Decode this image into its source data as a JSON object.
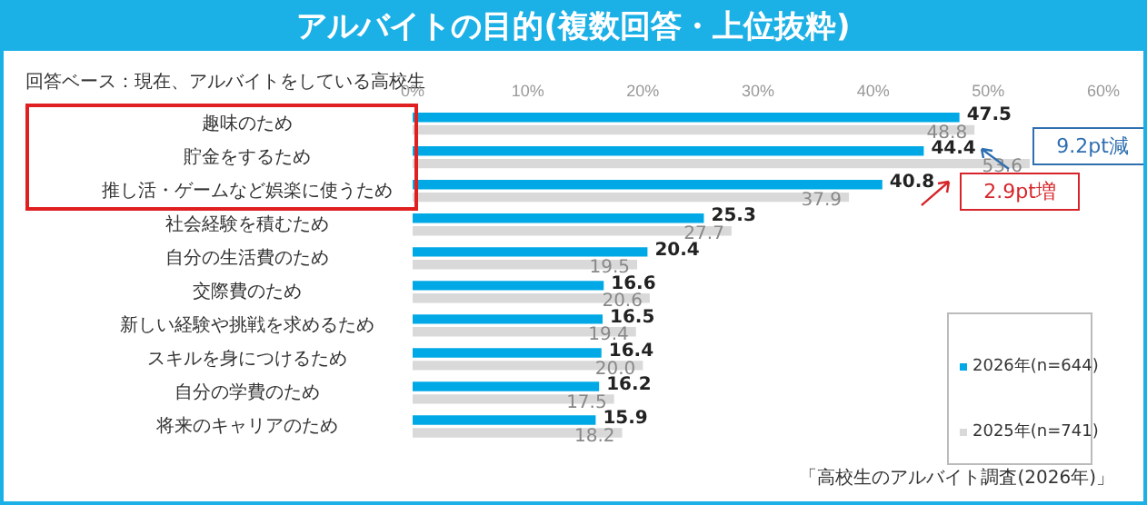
{
  "chart_data": {
    "type": "bar",
    "orientation": "horizontal",
    "title": "アルバイトの目的(複数回答・上位抜粋)",
    "subtitle": "回答ベース：現在、アルバイトをしている高校生",
    "categories": [
      "趣味のため",
      "貯金をするため",
      "推し活・ゲームなど娯楽に使うため",
      "社会経験を積むため",
      "自分の生活費のため",
      "交際費のため",
      "新しい経験や挑戦を求めるため",
      "スキルを身につけるため",
      "自分の学費のため",
      "将来のキャリアのため"
    ],
    "series": [
      {
        "name": "2026年(n=644)",
        "color": "#00a9e6",
        "values": [
          47.5,
          44.4,
          40.8,
          25.3,
          20.4,
          16.6,
          16.5,
          16.4,
          16.2,
          15.9
        ],
        "value_labels": [
          "47.5",
          "44.4",
          "40.8",
          "25.3",
          "20.4",
          "16.6",
          "16.5",
          "16.4",
          "16.2",
          "15.9"
        ]
      },
      {
        "name": "2025年(n=741)",
        "color": "#d9d9d9",
        "values": [
          48.8,
          53.6,
          37.9,
          27.7,
          19.5,
          20.6,
          19.4,
          20.0,
          17.5,
          18.2
        ],
        "value_labels": [
          "48.8",
          "53.6",
          "37.9",
          "27.7",
          "19.5",
          "20.6",
          "19.4",
          "20.0",
          "17.5",
          "18.2"
        ]
      }
    ],
    "xlim": [
      0,
      60
    ],
    "xticks": [
      {
        "value": 0,
        "label": "0%"
      },
      {
        "value": 10,
        "label": "10%"
      },
      {
        "value": 20,
        "label": "20%"
      },
      {
        "value": 30,
        "label": "30%"
      },
      {
        "value": 40,
        "label": "40%"
      },
      {
        "value": 50,
        "label": "50%"
      },
      {
        "value": 60,
        "label": "60%"
      }
    ],
    "grid": false,
    "legend": "bottom right",
    "annotations": [
      "9.2pt減",
      "2.9pt増",
      "「高校生のアルバイト調査(2026年)」"
    ]
  }
}
